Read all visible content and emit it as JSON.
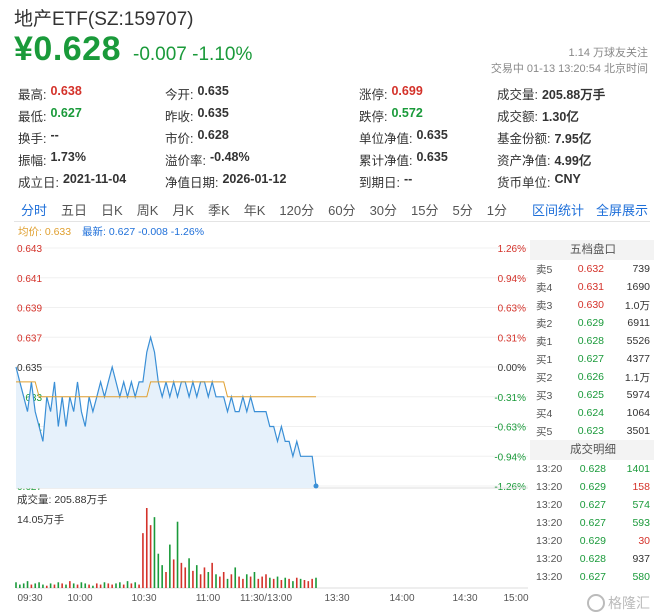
{
  "header": {
    "title": "地产ETF(SZ:159707)",
    "price": "¥0.628",
    "change": "-0.007",
    "change_pct": "-1.10%",
    "follow": "1.14 万球友关注",
    "trade_time": "交易中 01-13 13:20:54 北京时间"
  },
  "stats": [
    [
      {
        "k": "最高:",
        "v": "0.638",
        "c": "red"
      },
      {
        "k": "今开:",
        "v": "0.635",
        "c": ""
      },
      {
        "k": "涨停:",
        "v": "0.699",
        "c": "red"
      },
      {
        "k": "成交量:",
        "v": "205.88万手",
        "c": ""
      }
    ],
    [
      {
        "k": "最低:",
        "v": "0.627",
        "c": "green"
      },
      {
        "k": "昨收:",
        "v": "0.635",
        "c": ""
      },
      {
        "k": "跌停:",
        "v": "0.572",
        "c": "green"
      },
      {
        "k": "成交额:",
        "v": "1.30亿",
        "c": ""
      }
    ],
    [
      {
        "k": "换手:",
        "v": "--",
        "c": ""
      },
      {
        "k": "市价:",
        "v": "0.628",
        "c": ""
      },
      {
        "k": "单位净值:",
        "v": "0.635",
        "c": ""
      },
      {
        "k": "基金份额:",
        "v": "7.95亿",
        "c": ""
      }
    ],
    [
      {
        "k": "振幅:",
        "v": "1.73%",
        "c": ""
      },
      {
        "k": "溢价率:",
        "v": "-0.48%",
        "c": ""
      },
      {
        "k": "累计净值:",
        "v": "0.635",
        "c": ""
      },
      {
        "k": "资产净值:",
        "v": "4.99亿",
        "c": ""
      }
    ],
    [
      {
        "k": "成立日:",
        "v": "2021-11-04",
        "c": ""
      },
      {
        "k": "净值日期:",
        "v": "2026-01-12",
        "c": ""
      },
      {
        "k": "到期日:",
        "v": "--",
        "c": ""
      },
      {
        "k": "货币单位:",
        "v": "CNY",
        "c": ""
      }
    ]
  ],
  "tabs": [
    "分时",
    "五日",
    "日K",
    "周K",
    "月K",
    "季K",
    "年K",
    "120分",
    "60分",
    "30分",
    "15分",
    "5分",
    "1分"
  ],
  "tab_links": [
    "区间统计",
    "全屏展示"
  ],
  "legend": {
    "avg": "均价: 0.633",
    "last": "最新: 0.627 -0.008 -1.26%"
  },
  "volume_label": "成交量: 205.88万手",
  "volume_max_label": "14.05万手",
  "order_book": {
    "title": "五档盘口",
    "rows": [
      {
        "label": "卖5",
        "price": "0.632",
        "vol": "739",
        "c": "red"
      },
      {
        "label": "卖4",
        "price": "0.631",
        "vol": "1690",
        "c": "red"
      },
      {
        "label": "卖3",
        "price": "0.630",
        "vol": "1.0万",
        "c": "red"
      },
      {
        "label": "卖2",
        "price": "0.629",
        "vol": "6911",
        "c": "green"
      },
      {
        "label": "卖1",
        "price": "0.628",
        "vol": "5526",
        "c": "green"
      },
      {
        "label": "买1",
        "price": "0.627",
        "vol": "4377",
        "c": "green"
      },
      {
        "label": "买2",
        "price": "0.626",
        "vol": "1.1万",
        "c": "green"
      },
      {
        "label": "买3",
        "price": "0.625",
        "vol": "5974",
        "c": "green"
      },
      {
        "label": "买4",
        "price": "0.624",
        "vol": "1064",
        "c": "green"
      },
      {
        "label": "买5",
        "price": "0.623",
        "vol": "3501",
        "c": "green"
      }
    ]
  },
  "ticks": {
    "title": "成交明细",
    "rows": [
      {
        "t": "13:20",
        "p": "0.628",
        "v": "1401",
        "pc": "green",
        "vc": "green"
      },
      {
        "t": "13:20",
        "p": "0.629",
        "v": "158",
        "pc": "green",
        "vc": "red"
      },
      {
        "t": "13:20",
        "p": "0.627",
        "v": "574",
        "pc": "green",
        "vc": "green"
      },
      {
        "t": "13:20",
        "p": "0.627",
        "v": "593",
        "pc": "green",
        "vc": "green"
      },
      {
        "t": "13:20",
        "p": "0.629",
        "v": "30",
        "pc": "green",
        "vc": "red"
      },
      {
        "t": "13:20",
        "p": "0.628",
        "v": "937",
        "pc": "green",
        "vc": ""
      },
      {
        "t": "13:20",
        "p": "0.627",
        "v": "580",
        "pc": "green",
        "vc": "green"
      }
    ]
  },
  "colors": {
    "up": "#d4322a",
    "down": "#1a9a3a",
    "price_line": "#3a8fd6",
    "avg_line": "#e0a030",
    "accent": "#1e6fd9"
  },
  "watermark": "格隆汇",
  "chart_data": {
    "type": "line",
    "title": "",
    "x_ticks": [
      "09:30",
      "10:00",
      "10:30",
      "11:00",
      "11:30/13:00",
      "13:30",
      "14:00",
      "14:30",
      "15:00"
    ],
    "y_left_ticks": [
      "0.643",
      "0.641",
      "0.639",
      "0.637",
      "0.635",
      "0.633",
      "0.631",
      "0.629",
      "0.627"
    ],
    "y_right_ticks": [
      "1.26%",
      "0.94%",
      "0.63%",
      "0.31%",
      "0.00%",
      "-0.31%",
      "-0.63%",
      "-0.94%",
      "-1.26%"
    ],
    "ylim": [
      0.627,
      0.643
    ],
    "prev_close": 0.635,
    "series": [
      {
        "values": [
          0.635,
          0.634,
          0.633,
          0.632,
          0.634,
          0.632,
          0.631,
          0.63,
          0.633,
          0.632,
          0.634,
          0.631,
          0.633,
          0.631,
          0.633,
          0.632,
          0.634,
          0.632,
          0.631,
          0.633,
          0.632,
          0.633,
          0.634,
          0.633,
          0.634,
          0.635,
          0.634,
          0.633,
          0.634,
          0.633,
          0.634,
          0.633,
          0.634,
          0.634,
          0.636,
          0.637,
          0.636,
          0.634,
          0.633,
          0.634,
          0.633,
          0.634,
          0.633,
          0.634,
          0.634,
          0.633,
          0.634,
          0.633,
          0.634,
          0.634,
          0.633,
          0.634,
          0.633,
          0.633,
          0.633,
          0.632,
          0.633,
          0.632,
          0.632,
          0.633,
          0.632,
          0.633,
          0.632,
          0.632,
          0.632,
          0.632,
          0.631,
          0.631,
          0.63,
          0.631,
          0.63,
          0.63,
          0.629,
          0.63,
          0.629,
          0.629,
          0.629,
          0.629,
          0.627
        ]
      },
      {
        "values": [
          0.634,
          0.634,
          0.634,
          0.634,
          0.634,
          0.634,
          0.633,
          0.633,
          0.633,
          0.633,
          0.633,
          0.633,
          0.633,
          0.633,
          0.633,
          0.633,
          0.633,
          0.633,
          0.633,
          0.633,
          0.633,
          0.633,
          0.633,
          0.633,
          0.633,
          0.633,
          0.633,
          0.633,
          0.633,
          0.633,
          0.633,
          0.633,
          0.633,
          0.633,
          0.633,
          0.634,
          0.634,
          0.634,
          0.634,
          0.634,
          0.634,
          0.634,
          0.634,
          0.634,
          0.634,
          0.634,
          0.634,
          0.634,
          0.634,
          0.634,
          0.634,
          0.634,
          0.634,
          0.634,
          0.634,
          0.633,
          0.633,
          0.633,
          0.633,
          0.633,
          0.633,
          0.633,
          0.633,
          0.633,
          0.633,
          0.633,
          0.633,
          0.633,
          0.633,
          0.633,
          0.633,
          0.633,
          0.633,
          0.633,
          0.633,
          0.633,
          0.633,
          0.633,
          0.633
        ]
      }
    ],
    "volume": [
      5,
      3,
      4,
      6,
      3,
      4,
      5,
      3,
      2,
      4,
      3,
      5,
      4,
      3,
      6,
      4,
      3,
      5,
      4,
      3,
      2,
      4,
      3,
      5,
      4,
      3,
      4,
      5,
      3,
      6,
      4,
      5,
      3,
      48,
      70,
      55,
      62,
      30,
      20,
      14,
      38,
      25,
      58,
      22,
      18,
      26,
      15,
      20,
      12,
      18,
      14,
      22,
      12,
      10,
      14,
      8,
      12,
      18,
      10,
      8,
      12,
      10,
      14,
      8,
      10,
      12,
      9,
      8,
      10,
      7,
      9,
      8,
      6,
      9,
      8,
      7,
      6,
      8,
      9
    ]
  }
}
